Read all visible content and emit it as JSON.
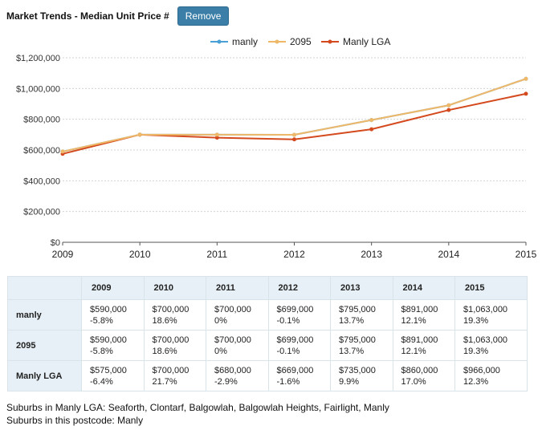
{
  "header": {
    "title": "Market Trends - Median Unit Price #",
    "remove_label": "Remove"
  },
  "chart_data": {
    "type": "line",
    "title": "Market Trends - Median Unit Price #",
    "x": [
      2009,
      2010,
      2011,
      2012,
      2013,
      2014,
      2015
    ],
    "ylim": [
      0,
      1200000
    ],
    "yticks": [
      0,
      200000,
      400000,
      600000,
      800000,
      1000000,
      1200000
    ],
    "ytick_labels": [
      "$0",
      "$200,000",
      "$400,000",
      "$600,000",
      "$800,000",
      "$1,000,000",
      "$1,200,000"
    ],
    "legend_position": "top-center",
    "grid": true,
    "series": [
      {
        "name": "manly",
        "color": "#4a9fd6",
        "values": [
          590000,
          700000,
          700000,
          699000,
          795000,
          891000,
          1063000
        ]
      },
      {
        "name": "2095",
        "color": "#eeb868",
        "values": [
          590000,
          700000,
          700000,
          699000,
          795000,
          891000,
          1063000
        ]
      },
      {
        "name": "Manly LGA",
        "color": "#d44a1e",
        "values": [
          575000,
          700000,
          680000,
          669000,
          735000,
          860000,
          966000
        ]
      }
    ]
  },
  "table": {
    "years": [
      "2009",
      "2010",
      "2011",
      "2012",
      "2013",
      "2014",
      "2015"
    ],
    "rows": [
      {
        "label": "manly",
        "prices": [
          "$590,000",
          "$700,000",
          "$700,000",
          "$699,000",
          "$795,000",
          "$891,000",
          "$1,063,000"
        ],
        "changes": [
          "-5.8%",
          "18.6%",
          "0%",
          "-0.1%",
          "13.7%",
          "12.1%",
          "19.3%"
        ]
      },
      {
        "label": "2095",
        "prices": [
          "$590,000",
          "$700,000",
          "$700,000",
          "$699,000",
          "$795,000",
          "$891,000",
          "$1,063,000"
        ],
        "changes": [
          "-5.8%",
          "18.6%",
          "0%",
          "-0.1%",
          "13.7%",
          "12.1%",
          "19.3%"
        ]
      },
      {
        "label": "Manly LGA",
        "prices": [
          "$575,000",
          "$700,000",
          "$680,000",
          "$669,000",
          "$735,000",
          "$860,000",
          "$966,000"
        ],
        "changes": [
          "-6.4%",
          "21.7%",
          "-2.9%",
          "-1.6%",
          "9.9%",
          "17.0%",
          "12.3%"
        ]
      }
    ]
  },
  "footnotes": {
    "lga_suburbs": "Suburbs in Manly LGA: Seaforth, Clontarf, Balgowlah, Balgowlah Heights, Fairlight, Manly",
    "postcode_suburbs": "Suburbs in this postcode: Manly"
  }
}
